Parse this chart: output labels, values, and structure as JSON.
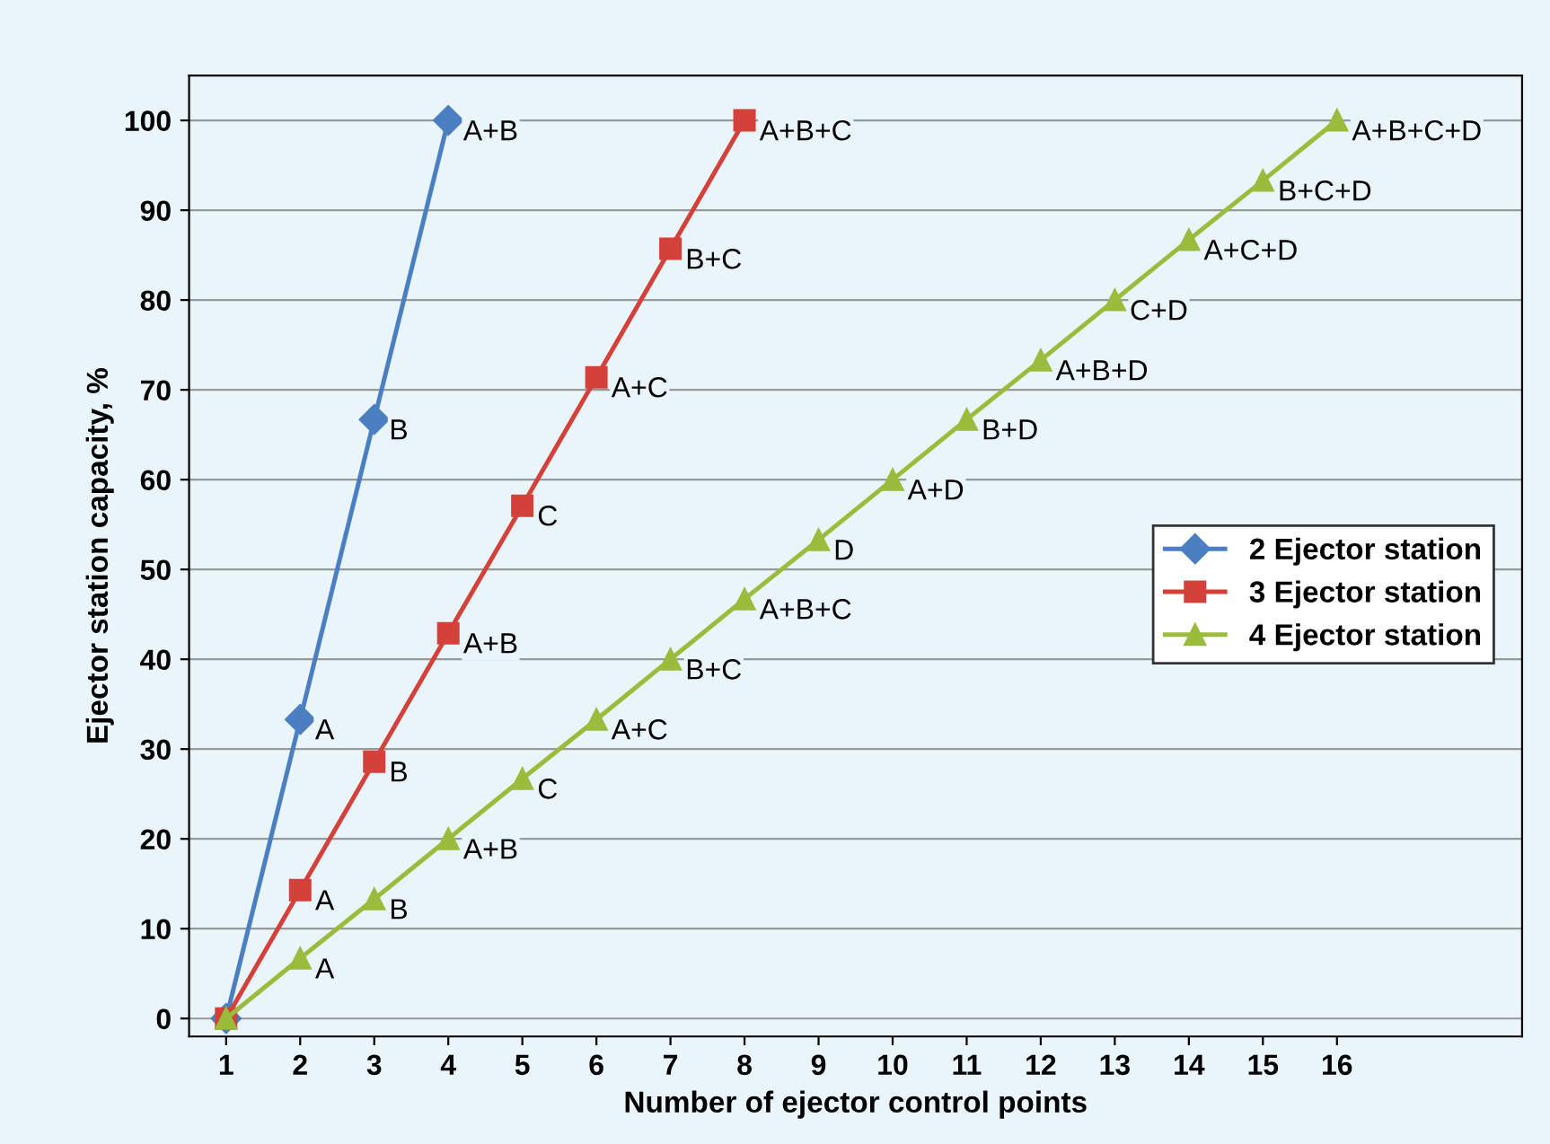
{
  "chart_data": {
    "type": "line",
    "xlabel": "Number of ejector control points",
    "ylabel": "Ejector station capacity, %",
    "xlim": [
      0.5,
      18.5
    ],
    "xticks": [
      1,
      2,
      3,
      4,
      5,
      6,
      7,
      8,
      9,
      10,
      11,
      12,
      13,
      14,
      15,
      16
    ],
    "ylim": [
      -2,
      105
    ],
    "yticks": [
      0,
      10,
      20,
      30,
      40,
      50,
      60,
      70,
      80,
      90,
      100
    ],
    "grid": "y",
    "legend": "right",
    "series": [
      {
        "name": "2 Ejector station",
        "color": "#4a7fc1",
        "marker": "diamond",
        "x": [
          1,
          2,
          3,
          4
        ],
        "values": [
          0,
          33.3,
          66.7,
          100
        ]
      },
      {
        "name": "3 Ejector station",
        "color": "#d4403a",
        "marker": "square",
        "x": [
          1,
          2,
          3,
          4,
          5,
          6,
          7,
          8
        ],
        "values": [
          0,
          14.3,
          28.6,
          42.9,
          57.1,
          71.4,
          85.7,
          100
        ]
      },
      {
        "name": "4 Ejector station",
        "color": "#9bbb3c",
        "marker": "triangle",
        "x": [
          1,
          2,
          3,
          4,
          5,
          6,
          7,
          8,
          9,
          10,
          11,
          12,
          13,
          14,
          15,
          16
        ],
        "values": [
          0,
          6.7,
          13.3,
          20,
          26.7,
          33.3,
          40,
          46.7,
          53.3,
          60,
          66.7,
          73.3,
          80,
          86.7,
          93.3,
          100
        ]
      }
    ],
    "annotations": [
      {
        "text": "A",
        "x": 2,
        "y": 33.3
      },
      {
        "text": "B",
        "x": 3,
        "y": 66.7
      },
      {
        "text": "A+B",
        "x": 4,
        "y": 100
      },
      {
        "text": "A",
        "x": 2,
        "y": 14.3
      },
      {
        "text": "B",
        "x": 3,
        "y": 28.6
      },
      {
        "text": "A+B",
        "x": 4,
        "y": 42.9
      },
      {
        "text": "C",
        "x": 5,
        "y": 57.1
      },
      {
        "text": "A+C",
        "x": 6,
        "y": 71.4
      },
      {
        "text": "B+C",
        "x": 7,
        "y": 85.7
      },
      {
        "text": "A+B+C",
        "x": 8,
        "y": 100
      },
      {
        "text": "A",
        "x": 2,
        "y": 6.7
      },
      {
        "text": "B",
        "x": 3,
        "y": 13.3
      },
      {
        "text": "A+B",
        "x": 4,
        "y": 20
      },
      {
        "text": "C",
        "x": 5,
        "y": 26.7
      },
      {
        "text": "A+C",
        "x": 6,
        "y": 33.3
      },
      {
        "text": "B+C",
        "x": 7,
        "y": 40
      },
      {
        "text": "A+B+C",
        "x": 8,
        "y": 46.7
      },
      {
        "text": "D",
        "x": 9,
        "y": 53.3
      },
      {
        "text": "A+D",
        "x": 10,
        "y": 60
      },
      {
        "text": "B+D",
        "x": 11,
        "y": 66.7
      },
      {
        "text": "A+B+D",
        "x": 12,
        "y": 73.3
      },
      {
        "text": "C+D",
        "x": 13,
        "y": 80
      },
      {
        "text": "A+C+D",
        "x": 14,
        "y": 86.7
      },
      {
        "text": "B+C+D",
        "x": 15,
        "y": 93.3
      },
      {
        "text": "A+B+C+D",
        "x": 16,
        "y": 100
      }
    ]
  }
}
